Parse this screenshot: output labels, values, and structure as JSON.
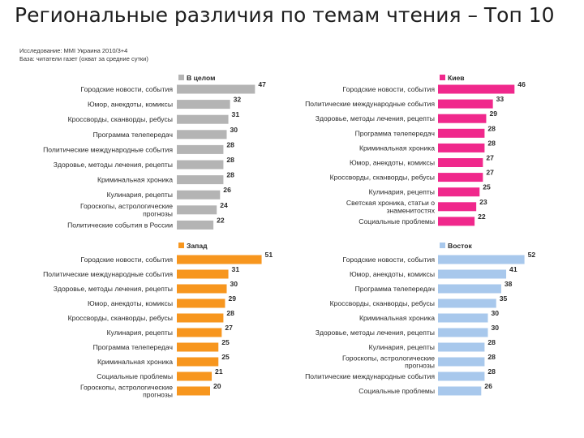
{
  "header": {
    "title": "Региональные различия по темам чтения – Топ 10",
    "note1": "Исследование: MMI Украина 2010/3+4",
    "note2": "База: читатели газет (охват за средние сутки)"
  },
  "chart_data": [
    {
      "type": "bar",
      "orientation": "horizontal",
      "legend": "В целом",
      "color": "#b4b4b4",
      "categories": [
        "Городские новости, события",
        "Юмор, анекдоты, комиксы",
        "Кроссворды, сканворды, ребусы",
        "Программа телепередач",
        "Политические международные события",
        "Здоровье, методы лечения, рецепты",
        "Криминальная хроника",
        "Кулинария, рецепты",
        "Гороскопы, астрологические прогнозы",
        "Политические события в России"
      ],
      "values": [
        47,
        32,
        31,
        30,
        28,
        28,
        28,
        26,
        24,
        22
      ]
    },
    {
      "type": "bar",
      "orientation": "horizontal",
      "legend": "Киев",
      "color": "#f0288c",
      "categories": [
        "Городские новости, события",
        "Политические международные события",
        "Здоровье, методы лечения, рецепты",
        "Программа телепередач",
        "Криминальная хроника",
        "Юмор, анекдоты, комиксы",
        "Кроссворды, сканворды, ребусы",
        "Кулинария, рецепты",
        "Светская хроника, статьи о знаменитостях",
        "Социальные проблемы"
      ],
      "values": [
        46,
        33,
        29,
        28,
        28,
        27,
        27,
        25,
        23,
        22
      ]
    },
    {
      "type": "bar",
      "orientation": "horizontal",
      "legend": "Запад",
      "color": "#f7961e",
      "categories": [
        "Городские новости, события",
        "Политические международные события",
        "Здоровье, методы лечения, рецепты",
        "Юмор, анекдоты, комиксы",
        "Кроссворды, сканворды, ребусы",
        "Кулинария, рецепты",
        "Программа телепередач",
        "Криминальная хроника",
        "Социальные проблемы",
        "Гороскопы, астрологические прогнозы"
      ],
      "values": [
        51,
        31,
        30,
        29,
        28,
        27,
        25,
        25,
        21,
        20
      ]
    },
    {
      "type": "bar",
      "orientation": "horizontal",
      "legend": "Восток",
      "color": "#a8c8ec",
      "categories": [
        "Городские новости, события",
        "Юмор, анекдоты, комиксы",
        "Программа телепередач",
        "Кроссворды, сканворды, ребусы",
        "Криминальная хроника",
        "Здоровье, методы лечения, рецепты",
        "Кулинария, рецепты",
        "Гороскопы, астрологические прогнозы",
        "Политические международные события",
        "Социальные проблемы"
      ],
      "values": [
        52,
        41,
        38,
        35,
        30,
        30,
        28,
        28,
        28,
        26
      ]
    }
  ]
}
